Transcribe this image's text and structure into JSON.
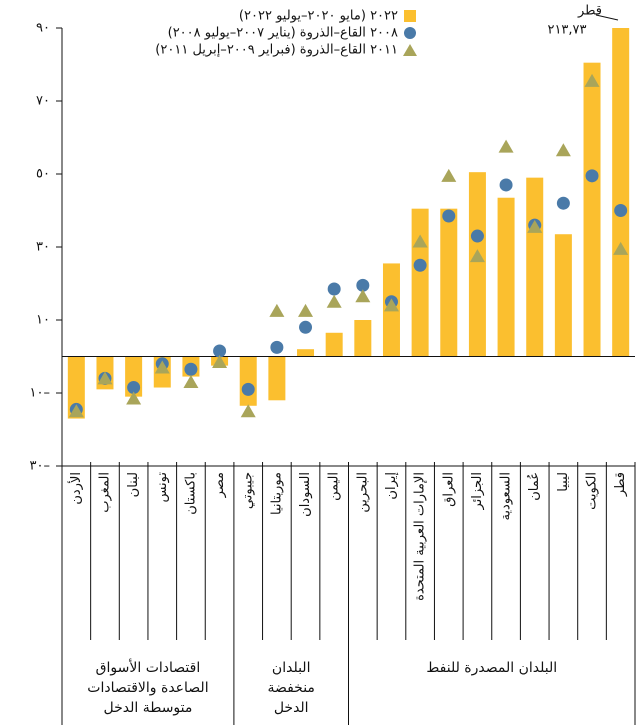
{
  "chart_data": {
    "type": "bar",
    "categories": [
      "الأردن",
      "المغرب",
      "لبنان",
      "تونس",
      "باكستان",
      "مصر",
      "جيبوتي",
      "موريتانيا",
      "السودان",
      "اليمن",
      "البحرين",
      "إيران",
      "الإمارات العربية المتحدة",
      "العراق",
      "الجزائر",
      "السعودية",
      "عُمان",
      "ليبيا",
      "الكويت",
      "قطر"
    ],
    "series": [
      {
        "name": "٢٠٢٢ (مايو ٢٠٢٠–يوليو ٢٠٢٢)",
        "color": "#fbbf2f",
        "marker": "bar",
        "values": [
          -17,
          -9,
          -11,
          -8.5,
          -5.5,
          -2.5,
          -13.5,
          -12,
          2,
          6.5,
          10,
          25.5,
          40.5,
          40.5,
          50.5,
          43.5,
          49,
          33.5,
          80.5,
          213.73
        ],
        "value_labels": [
          null,
          null,
          null,
          null,
          null,
          null,
          null,
          null,
          null,
          null,
          null,
          null,
          null,
          null,
          null,
          null,
          null,
          null,
          null,
          "٢١٣,٧٣"
        ]
      },
      {
        "name": "٢٠٠٨ القاع–الذروة (يناير ٢٠٠٧–يوليو ٢٠٠٨)",
        "color": "#4a7aa8",
        "marker": "circle",
        "values": [
          -14.5,
          -6,
          -8.5,
          -2,
          -3.5,
          1.5,
          -9,
          2.5,
          8,
          18.5,
          19.5,
          15,
          25,
          38.5,
          33,
          47,
          36,
          42,
          49.5,
          40
        ]
      },
      {
        "name": "٢٠١١ القاع–الذروة (فبراير ٢٠٠٩–إبريل ٢٠١١)",
        "color": "#a9a55a",
        "marker": "triangle",
        "values": [
          -15,
          -6,
          -11.5,
          -3,
          -7,
          -1.5,
          -15,
          12.5,
          12.5,
          15,
          16.5,
          14,
          31.5,
          49.5,
          27.5,
          57.5,
          35.5,
          56.5,
          75.5,
          29.5
        ]
      }
    ],
    "annotation": "قطر",
    "groups": [
      {
        "lines": [
          "اقتصادات الأسواق",
          "الصاعدة والاقتصادات",
          "متوسطة الدخل"
        ]
      },
      {
        "lines": [
          "البلدان",
          "منخفضة",
          "الدخل"
        ]
      },
      {
        "lines": [
          "البلدان المصدرة للنفط"
        ]
      }
    ],
    "ylim": [
      -30,
      90
    ],
    "yticks": [
      {
        "value": 90,
        "label": "٩٠"
      },
      {
        "value": 70,
        "label": "٧٠"
      },
      {
        "value": 50,
        "label": "٥٠"
      },
      {
        "value": 30,
        "label": "٣٠"
      },
      {
        "value": 10,
        "label": "١٠"
      },
      {
        "value": -10,
        "label": "١٠–"
      },
      {
        "value": -30,
        "label": "٣٠–"
      }
    ],
    "legend": "top"
  }
}
